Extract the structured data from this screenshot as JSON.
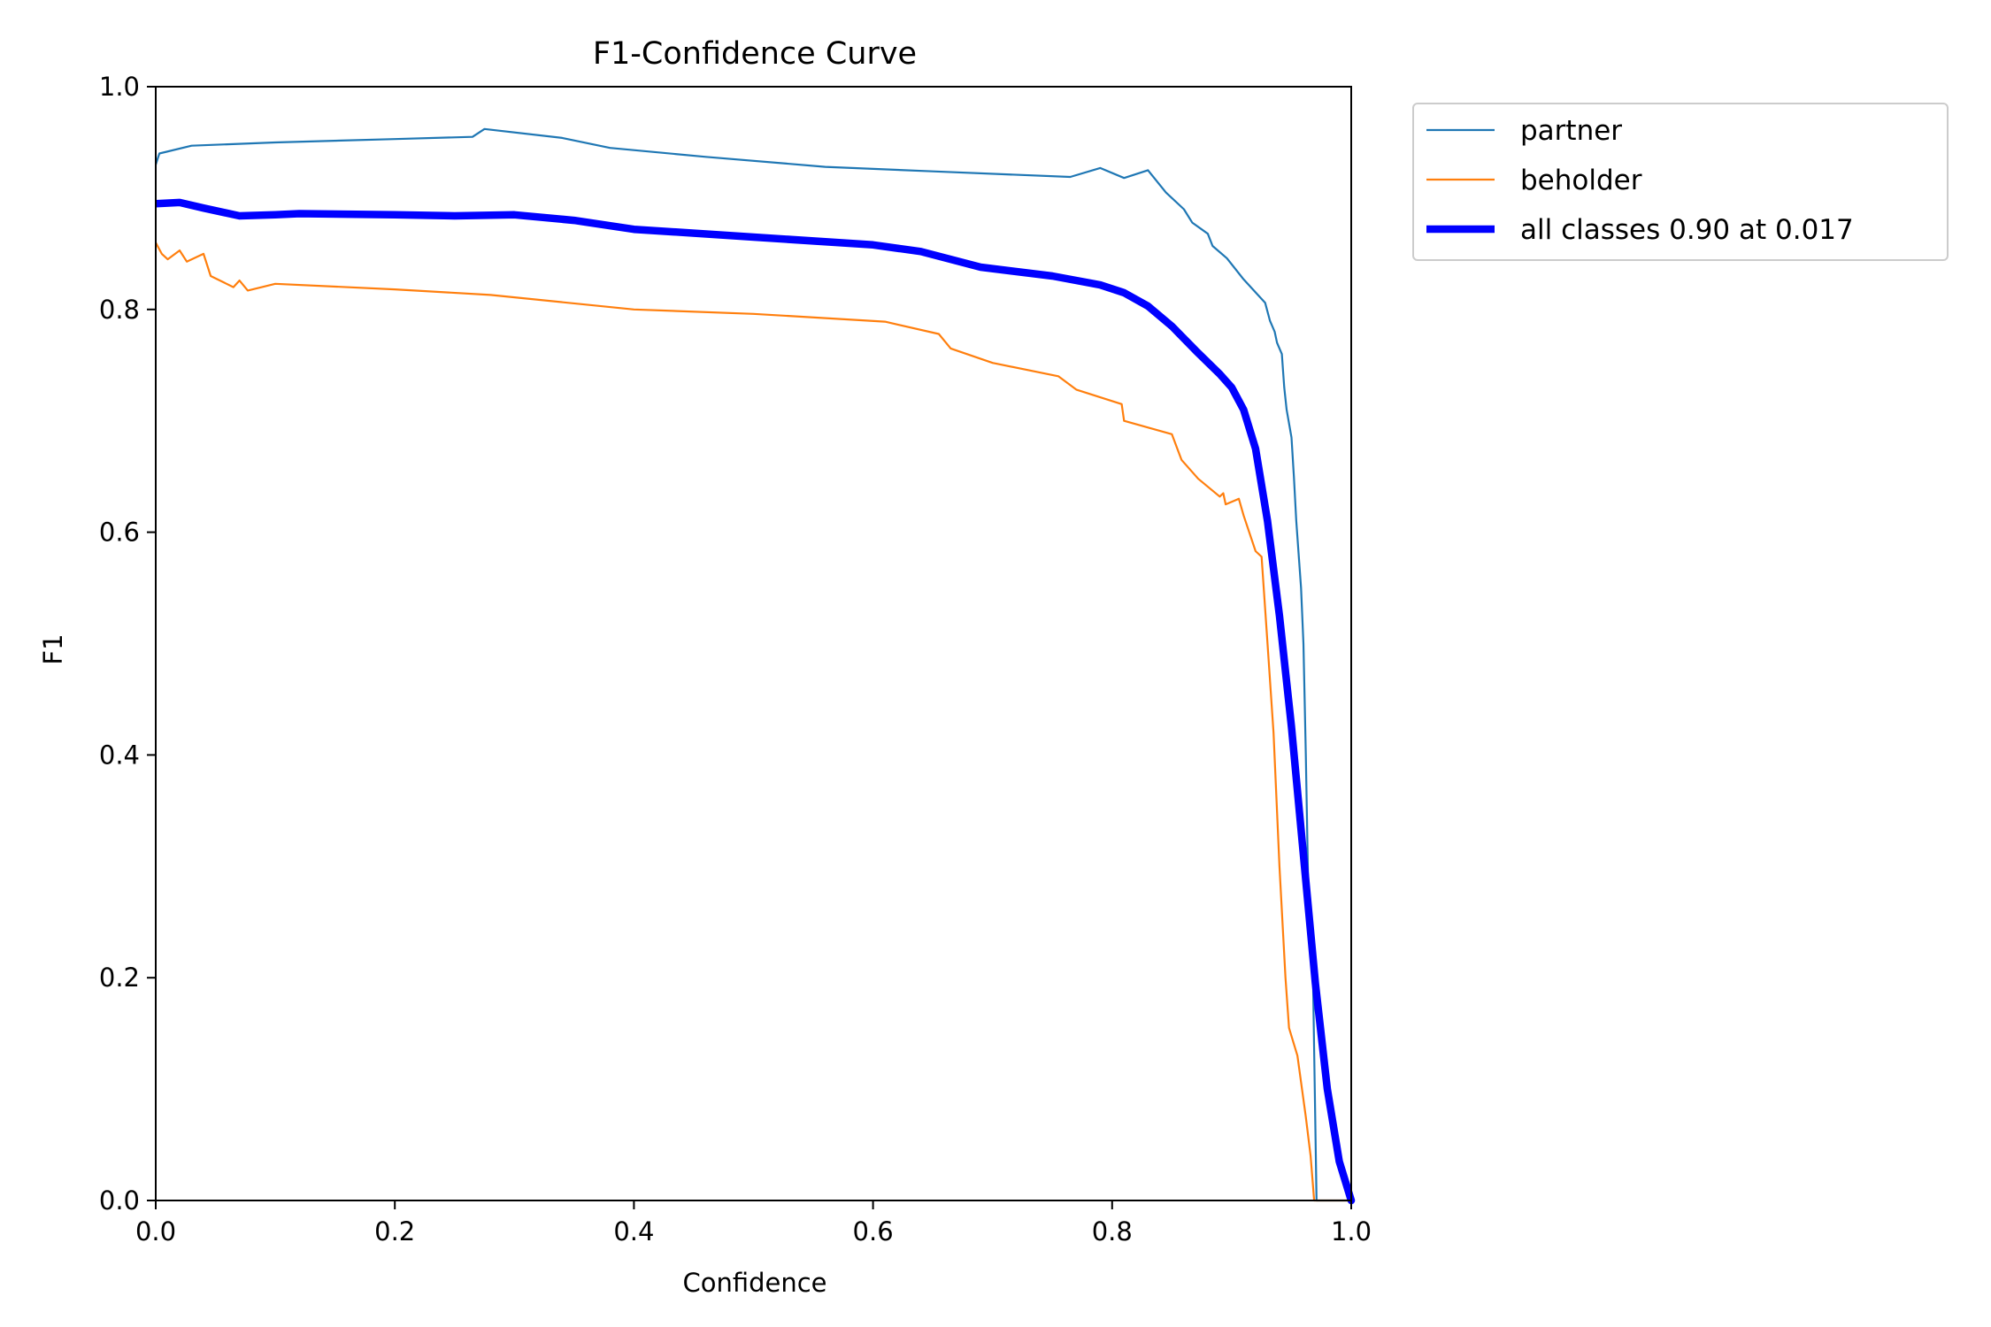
{
  "chart_data": {
    "type": "line",
    "title": "F1-Confidence Curve",
    "xlabel": "Confidence",
    "ylabel": "F1",
    "xlim": [
      0.0,
      1.0
    ],
    "ylim": [
      0.0,
      1.0
    ],
    "xticks": [
      "0.0",
      "0.2",
      "0.4",
      "0.6",
      "0.8",
      "1.0"
    ],
    "yticks": [
      "0.0",
      "0.2",
      "0.4",
      "0.6",
      "0.8",
      "1.0"
    ],
    "grid": false,
    "legend_position": "outside-top-right",
    "series": [
      {
        "name": "partner",
        "color": "#1f77b4",
        "points": [
          [
            0.0,
            0.93
          ],
          [
            0.003,
            0.94
          ],
          [
            0.03,
            0.947
          ],
          [
            0.1,
            0.95
          ],
          [
            0.2,
            0.953
          ],
          [
            0.265,
            0.955
          ],
          [
            0.275,
            0.962
          ],
          [
            0.34,
            0.954
          ],
          [
            0.38,
            0.945
          ],
          [
            0.46,
            0.937
          ],
          [
            0.56,
            0.928
          ],
          [
            0.65,
            0.924
          ],
          [
            0.765,
            0.919
          ],
          [
            0.79,
            0.927
          ],
          [
            0.81,
            0.918
          ],
          [
            0.83,
            0.925
          ],
          [
            0.845,
            0.905
          ],
          [
            0.86,
            0.89
          ],
          [
            0.867,
            0.878
          ],
          [
            0.88,
            0.868
          ],
          [
            0.884,
            0.857
          ],
          [
            0.896,
            0.846
          ],
          [
            0.91,
            0.827
          ],
          [
            0.928,
            0.806
          ],
          [
            0.932,
            0.79
          ],
          [
            0.936,
            0.78
          ],
          [
            0.938,
            0.77
          ],
          [
            0.942,
            0.76
          ],
          [
            0.944,
            0.73
          ],
          [
            0.946,
            0.71
          ],
          [
            0.95,
            0.685
          ],
          [
            0.952,
            0.65
          ],
          [
            0.954,
            0.61
          ],
          [
            0.958,
            0.55
          ],
          [
            0.96,
            0.5
          ],
          [
            0.962,
            0.4
          ],
          [
            0.964,
            0.28
          ],
          [
            0.968,
            0.2
          ],
          [
            0.971,
            0.0
          ],
          [
            1.0,
            0.0
          ]
        ]
      },
      {
        "name": "beholder",
        "color": "#ff7f0e",
        "points": [
          [
            0.0,
            0.86
          ],
          [
            0.005,
            0.85
          ],
          [
            0.01,
            0.845
          ],
          [
            0.02,
            0.853
          ],
          [
            0.026,
            0.843
          ],
          [
            0.04,
            0.85
          ],
          [
            0.046,
            0.83
          ],
          [
            0.065,
            0.82
          ],
          [
            0.07,
            0.826
          ],
          [
            0.077,
            0.817
          ],
          [
            0.1,
            0.823
          ],
          [
            0.2,
            0.818
          ],
          [
            0.28,
            0.813
          ],
          [
            0.4,
            0.8
          ],
          [
            0.5,
            0.796
          ],
          [
            0.61,
            0.789
          ],
          [
            0.655,
            0.778
          ],
          [
            0.665,
            0.765
          ],
          [
            0.7,
            0.752
          ],
          [
            0.755,
            0.74
          ],
          [
            0.77,
            0.728
          ],
          [
            0.808,
            0.715
          ],
          [
            0.81,
            0.7
          ],
          [
            0.85,
            0.688
          ],
          [
            0.858,
            0.665
          ],
          [
            0.872,
            0.648
          ],
          [
            0.89,
            0.632
          ],
          [
            0.893,
            0.635
          ],
          [
            0.895,
            0.625
          ],
          [
            0.906,
            0.63
          ],
          [
            0.91,
            0.615
          ],
          [
            0.92,
            0.583
          ],
          [
            0.925,
            0.578
          ],
          [
            0.93,
            0.5
          ],
          [
            0.935,
            0.42
          ],
          [
            0.94,
            0.3
          ],
          [
            0.945,
            0.2
          ],
          [
            0.948,
            0.155
          ],
          [
            0.955,
            0.13
          ],
          [
            0.962,
            0.075
          ],
          [
            0.966,
            0.04
          ],
          [
            0.969,
            0.0
          ],
          [
            1.0,
            0.0
          ]
        ]
      },
      {
        "name": "all classes 0.90 at 0.017",
        "color": "#0000ff",
        "points": [
          [
            0.0,
            0.895
          ],
          [
            0.02,
            0.896
          ],
          [
            0.04,
            0.891
          ],
          [
            0.07,
            0.884
          ],
          [
            0.1,
            0.885
          ],
          [
            0.12,
            0.886
          ],
          [
            0.2,
            0.885
          ],
          [
            0.25,
            0.884
          ],
          [
            0.3,
            0.885
          ],
          [
            0.35,
            0.88
          ],
          [
            0.4,
            0.872
          ],
          [
            0.5,
            0.865
          ],
          [
            0.6,
            0.858
          ],
          [
            0.64,
            0.852
          ],
          [
            0.69,
            0.838
          ],
          [
            0.75,
            0.83
          ],
          [
            0.79,
            0.822
          ],
          [
            0.81,
            0.815
          ],
          [
            0.83,
            0.803
          ],
          [
            0.85,
            0.785
          ],
          [
            0.87,
            0.763
          ],
          [
            0.89,
            0.742
          ],
          [
            0.9,
            0.73
          ],
          [
            0.91,
            0.71
          ],
          [
            0.92,
            0.675
          ],
          [
            0.93,
            0.61
          ],
          [
            0.94,
            0.525
          ],
          [
            0.95,
            0.425
          ],
          [
            0.96,
            0.31
          ],
          [
            0.97,
            0.195
          ],
          [
            0.98,
            0.1
          ],
          [
            0.99,
            0.035
          ],
          [
            1.0,
            0.0
          ]
        ]
      }
    ]
  }
}
